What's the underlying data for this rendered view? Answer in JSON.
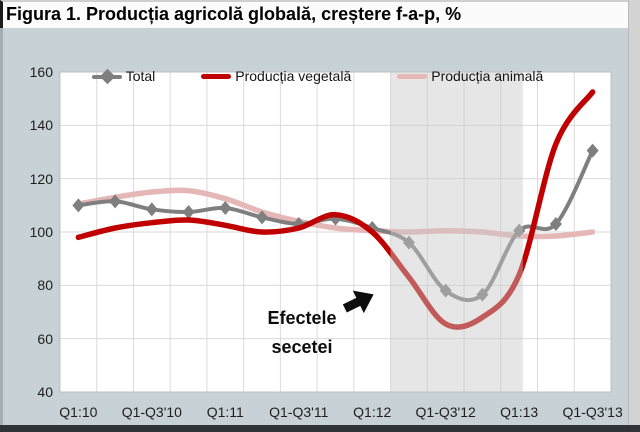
{
  "figure": {
    "title": "Figura 1. Producția agricolă globală, creștere f-a-p, %"
  },
  "annotation": {
    "line1": "Efectele",
    "line2": "secetei",
    "arrow": "up-right-arrow"
  },
  "chart_data": {
    "type": "line",
    "title": "Figura 1. Producția agricolă globală, creștere f-a-p, %",
    "xlabel": "",
    "ylabel": "",
    "ylim": [
      40,
      160
    ],
    "y_ticks": [
      160,
      140,
      120,
      100,
      80,
      60,
      40
    ],
    "x_tick_labels": [
      "Q1:10",
      "Q1-Q3'10",
      "Q1:11",
      "Q1-Q3'11",
      "Q1:12",
      "Q1-Q3'12",
      "Q1:13",
      "Q1-Q3'13"
    ],
    "x_tick_point_indices": [
      0,
      2,
      4,
      6,
      8,
      10,
      12,
      14
    ],
    "n_points": 15,
    "grid": true,
    "legend_position": "top",
    "series": [
      {
        "name": "Total",
        "color": "#7f7f7f",
        "marker": "diamond",
        "values": [
          110,
          111.5,
          108.5,
          107.5,
          109,
          105.5,
          103,
          105,
          101.5,
          96,
          78,
          76.5,
          100.5,
          103,
          130.5
        ]
      },
      {
        "name": "Producția vegetală",
        "color": "#c00000",
        "marker": "none",
        "values": [
          98,
          101.5,
          103.5,
          104.5,
          102.5,
          100,
          101.5,
          106.5,
          100,
          83,
          65.5,
          68,
          84,
          133,
          152.5
        ]
      },
      {
        "name": "Producția animală",
        "color": "#e5b8b7",
        "marker": "none",
        "values": [
          110.5,
          113,
          115,
          115.5,
          112.5,
          107.5,
          104,
          101.5,
          100.5,
          100,
          100.5,
          100,
          98.5,
          98.5,
          100
        ]
      }
    ],
    "shaded_region": {
      "start_index": 8.5,
      "end_index": 12.1,
      "fill": "rgba(200,200,200,0.45)"
    },
    "colors": {
      "chart_background": "#c7d1d6",
      "plot_background": "#ffffff",
      "gridline": "#dadada",
      "plot_border": "#bfbfbf",
      "annotation_arrow": "#0d0d0d"
    }
  }
}
